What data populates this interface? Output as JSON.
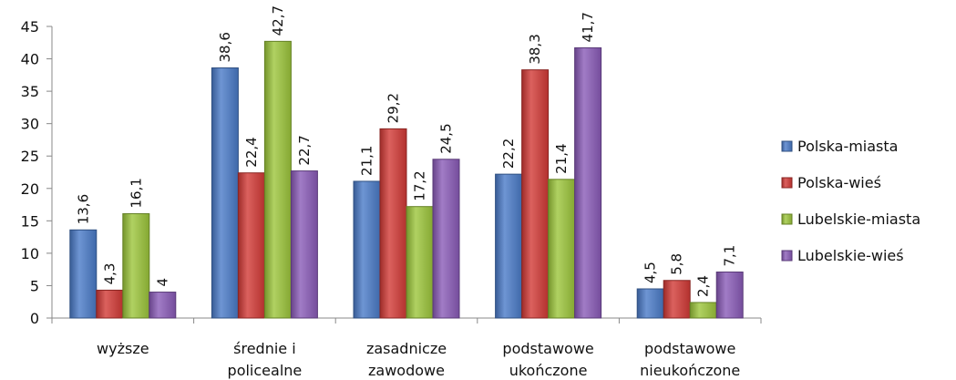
{
  "chart_data": {
    "type": "bar",
    "title": "",
    "xlabel": "",
    "ylabel": "",
    "ylim": [
      0,
      45
    ],
    "yticks": [
      0,
      5,
      10,
      15,
      20,
      25,
      30,
      35,
      40,
      45
    ],
    "grid": false,
    "legend_position": "right",
    "categories": [
      [
        "wyższe"
      ],
      [
        "średnie i",
        "policealne"
      ],
      [
        "zasadnicze",
        "zawodowe"
      ],
      [
        "podstawowe",
        "ukończone"
      ],
      [
        "podstawowe",
        "nieukończone"
      ]
    ],
    "series": [
      {
        "name": "Polska-miasta",
        "color": "#4a7bc8",
        "values": [
          13.6,
          38.6,
          21.1,
          22.2,
          4.5
        ],
        "labels": [
          "13,6",
          "38,6",
          "21,1",
          "22,2",
          "4,5"
        ]
      },
      {
        "name": "Polska-wieś",
        "color": "#d23a36",
        "values": [
          4.3,
          22.4,
          29.2,
          38.3,
          5.8
        ],
        "labels": [
          "4,3",
          "22,4",
          "29,2",
          "38,3",
          "5,8"
        ]
      },
      {
        "name": "Lubelskie-miasta",
        "color": "#9cc63b",
        "values": [
          16.1,
          42.7,
          17.2,
          21.4,
          2.4
        ],
        "labels": [
          "16,1",
          "42,7",
          "17,2",
          "21,4",
          "2,4"
        ]
      },
      {
        "name": "Lubelskie-wieś",
        "color": "#8a5bb8",
        "values": [
          4,
          22.7,
          24.5,
          41.7,
          7.1
        ],
        "labels": [
          "4",
          "22,7",
          "24,5",
          "41,7",
          "7,1"
        ]
      }
    ]
  }
}
